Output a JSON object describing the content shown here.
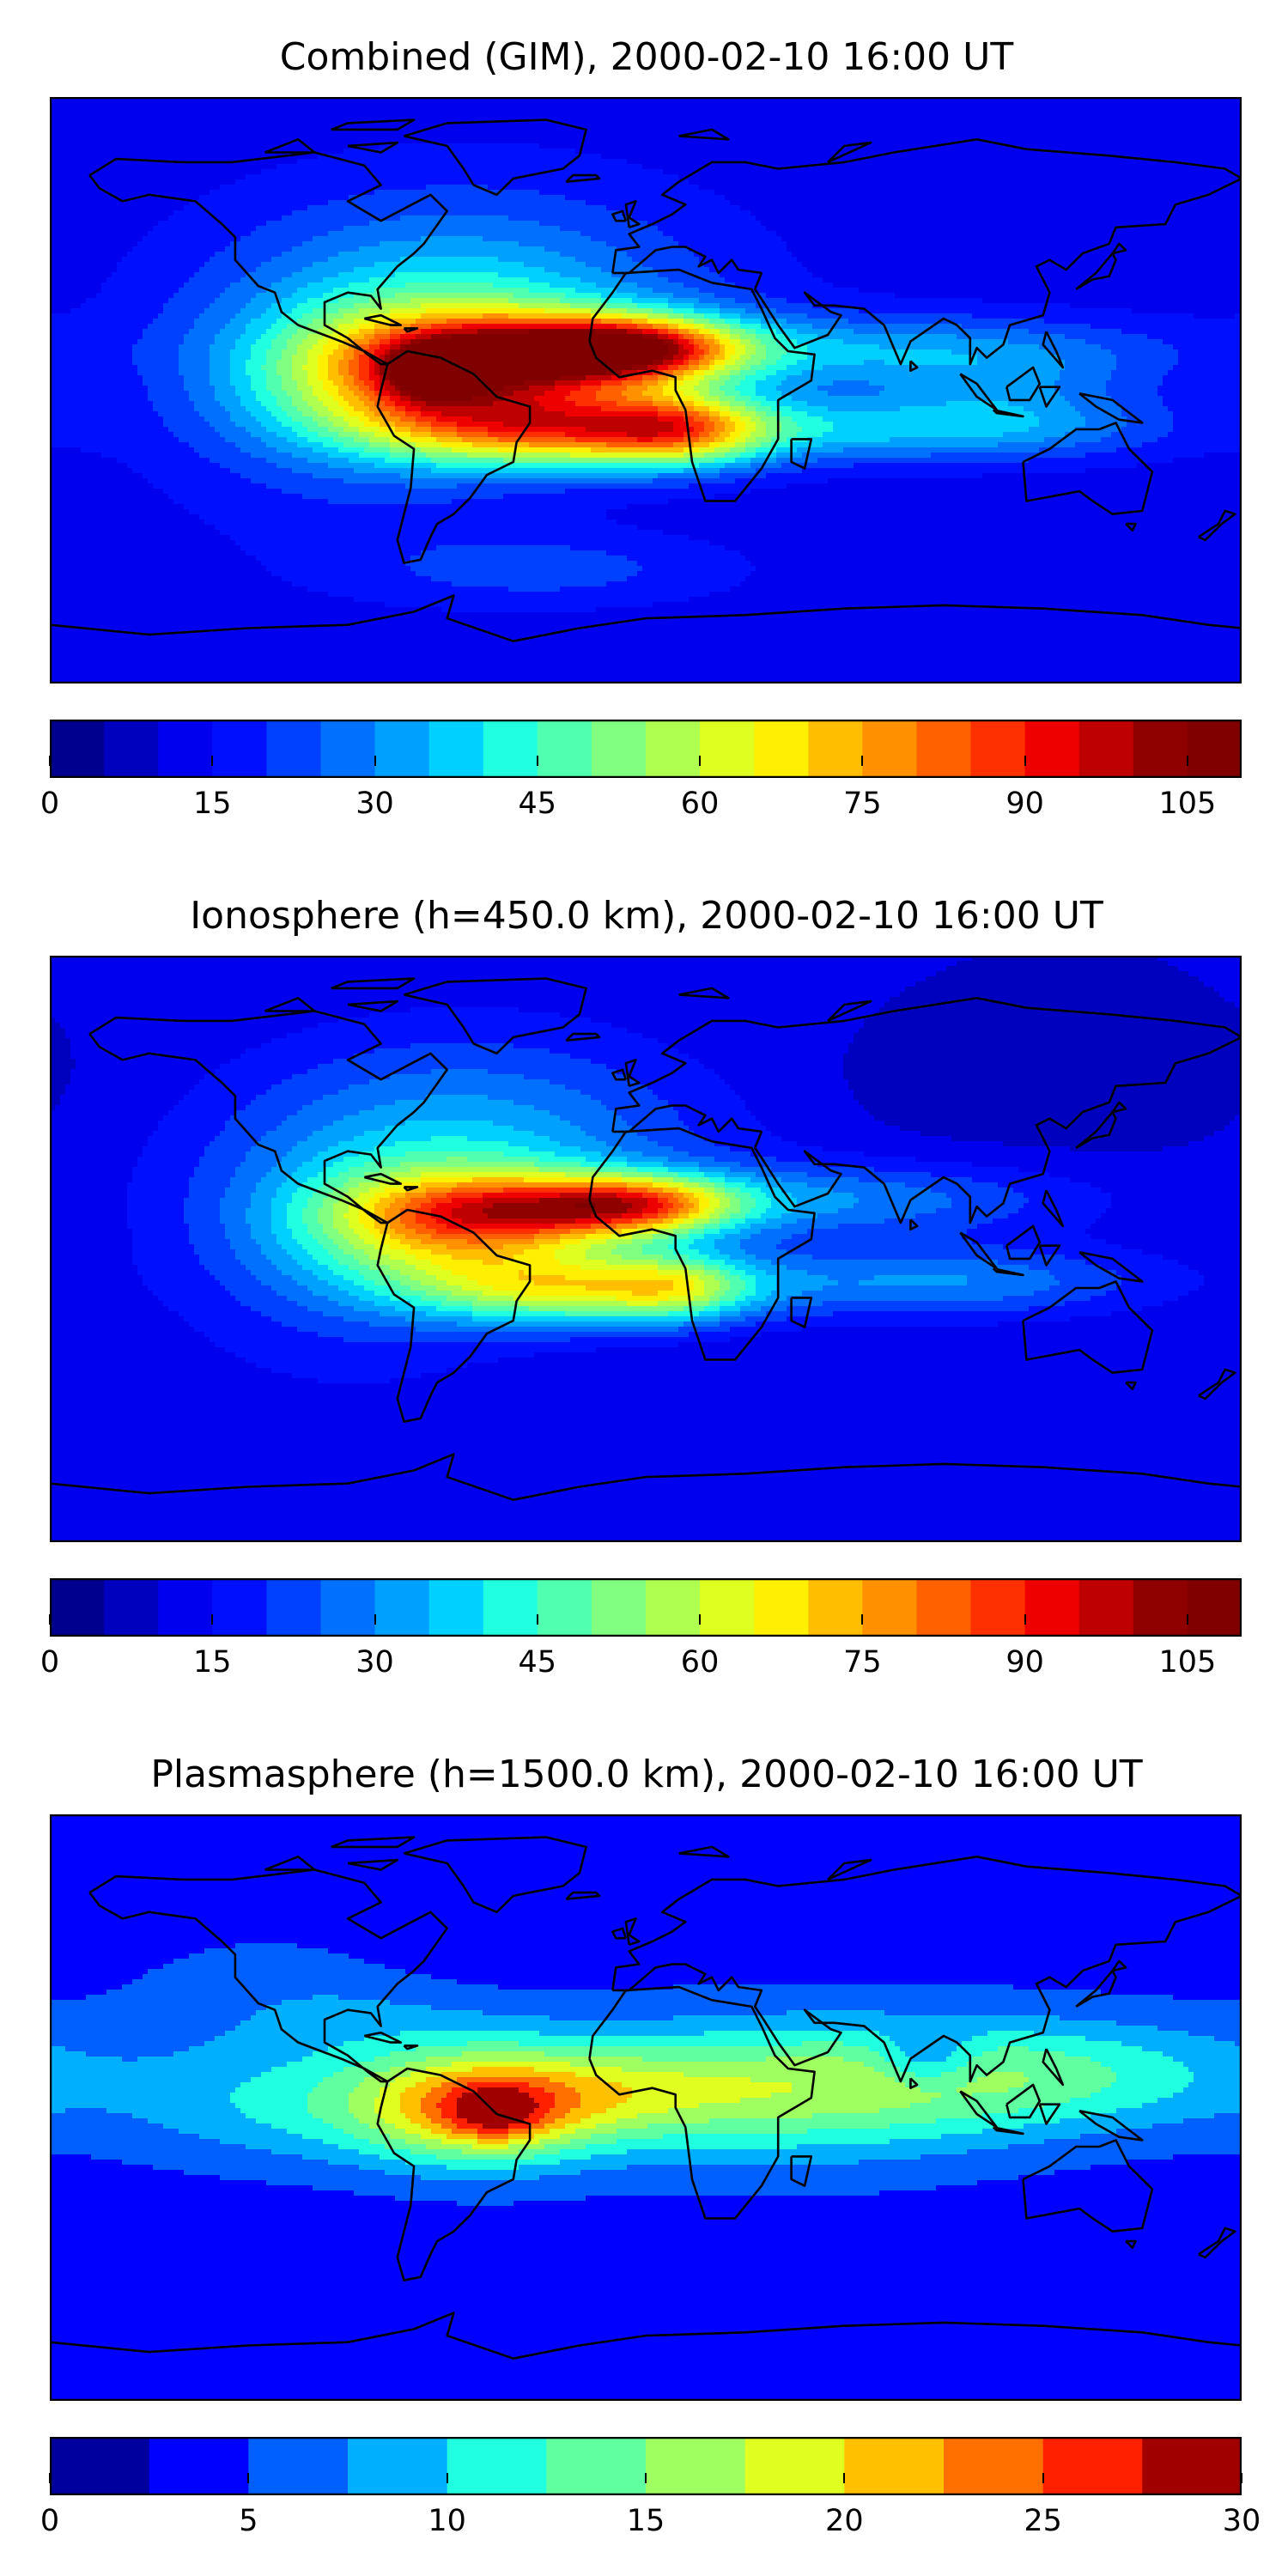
{
  "figure": {
    "background": "#ffffff"
  },
  "chart_data": [
    {
      "type": "heatmap",
      "title": "Combined (GIM), 2000-02-10 16:00 UT",
      "colorbar": {
        "min": 0,
        "max": 110,
        "step": 5,
        "ticks": [
          0,
          15,
          30,
          45,
          60,
          75,
          90,
          105
        ],
        "colors": [
          "#00008f",
          "#0000bf",
          "#0000ef",
          "#0010ff",
          "#0040ff",
          "#0070ff",
          "#00a0ff",
          "#00d0ff",
          "#20ffdf",
          "#50ffaf",
          "#80ff80",
          "#afff50",
          "#dfff20",
          "#ffef00",
          "#ffbf00",
          "#ff9000",
          "#ff6000",
          "#ff3000",
          "#ef0000",
          "#bf0000",
          "#8f0000",
          "#800000"
        ]
      },
      "background_value": 12,
      "blobs": [
        {
          "lon": -60,
          "lat": 5,
          "sx": 35,
          "sy": 14,
          "v": 55
        },
        {
          "lon": -25,
          "lat": 12,
          "sx": 30,
          "sy": 7,
          "v": 45
        },
        {
          "lon": 0,
          "lat": 13,
          "sx": 22,
          "sy": 7,
          "v": 40
        },
        {
          "lon": -20,
          "lat": -12,
          "sx": 38,
          "sy": 8,
          "v": 50
        },
        {
          "lon": 10,
          "lat": -12,
          "sx": 18,
          "sy": 8,
          "v": 30
        },
        {
          "lon": -65,
          "lat": 5,
          "sx": 10,
          "sy": 6,
          "v": 25
        },
        {
          "lon": -50,
          "lat": 25,
          "sx": 50,
          "sy": 25,
          "v": 22
        },
        {
          "lon": 70,
          "lat": 12,
          "sx": 60,
          "sy": 8,
          "v": 20
        },
        {
          "lon": 80,
          "lat": -12,
          "sx": 50,
          "sy": 7,
          "v": 20
        },
        {
          "lon": 110,
          "lat": -2,
          "sx": 30,
          "sy": 10,
          "v": 12
        },
        {
          "lon": -90,
          "lat": 0,
          "sx": 40,
          "sy": 30,
          "v": 12
        },
        {
          "lon": -30,
          "lat": -55,
          "sx": 40,
          "sy": 8,
          "v": 10
        }
      ]
    },
    {
      "type": "heatmap",
      "title": "Ionosphere  (h=450.0 km), 2000-02-10 16:00 UT",
      "colorbar": {
        "min": 0,
        "max": 110,
        "step": 5,
        "ticks": [
          0,
          15,
          30,
          45,
          60,
          75,
          90,
          105
        ],
        "colors": [
          "#00008f",
          "#0000bf",
          "#0000ef",
          "#0010ff",
          "#0040ff",
          "#0070ff",
          "#00a0ff",
          "#00d0ff",
          "#20ffdf",
          "#50ffaf",
          "#80ff80",
          "#afff50",
          "#dfff20",
          "#ffef00",
          "#ffbf00",
          "#ff9000",
          "#ff6000",
          "#ff3000",
          "#ef0000",
          "#bf0000",
          "#8f0000",
          "#800000"
        ]
      },
      "background_value": 10,
      "blobs": [
        {
          "lon": -60,
          "lat": 8,
          "sx": 30,
          "sy": 12,
          "v": 40
        },
        {
          "lon": -25,
          "lat": 12,
          "sx": 30,
          "sy": 7,
          "v": 38
        },
        {
          "lon": 0,
          "lat": 14,
          "sx": 20,
          "sy": 6,
          "v": 35
        },
        {
          "lon": -20,
          "lat": -12,
          "sx": 35,
          "sy": 8,
          "v": 45
        },
        {
          "lon": 10,
          "lat": -12,
          "sx": 15,
          "sy": 7,
          "v": 20
        },
        {
          "lon": -50,
          "lat": 30,
          "sx": 50,
          "sy": 25,
          "v": 22
        },
        {
          "lon": 60,
          "lat": 15,
          "sx": 50,
          "sy": 8,
          "v": 18
        },
        {
          "lon": 90,
          "lat": -10,
          "sx": 45,
          "sy": 8,
          "v": 20
        },
        {
          "lon": -90,
          "lat": 0,
          "sx": 40,
          "sy": 30,
          "v": 12
        },
        {
          "lon": 120,
          "lat": 50,
          "sx": 40,
          "sy": 12,
          "v": -4
        }
      ]
    },
    {
      "type": "heatmap",
      "title": "Plasmasphere (h=1500.0 km), 2000-02-10 16:00 UT",
      "colorbar": {
        "min": 0,
        "max": 30,
        "step": 2.5,
        "ticks": [
          0,
          5,
          10,
          15,
          20,
          25,
          30
        ],
        "colors": [
          "#00009f",
          "#0000ff",
          "#0060ff",
          "#00b0ff",
          "#20ffdf",
          "#60ffa0",
          "#a0ff60",
          "#e0ff20",
          "#ffc000",
          "#ff7000",
          "#ff2000",
          "#a00000"
        ]
      },
      "background_value": 4,
      "blobs": [
        {
          "lon": -50,
          "lat": 0,
          "sx": 25,
          "sy": 12,
          "v": 15
        },
        {
          "lon": -45,
          "lat": -2,
          "sx": 10,
          "sy": 6,
          "v": 6
        },
        {
          "lon": -10,
          "lat": 5,
          "sx": 30,
          "sy": 10,
          "v": 6
        },
        {
          "lon": 40,
          "lat": 5,
          "sx": 50,
          "sy": 15,
          "v": 10
        },
        {
          "lon": 120,
          "lat": 10,
          "sx": 50,
          "sy": 12,
          "v": 8
        },
        {
          "lon": 85,
          "lat": 15,
          "sx": 10,
          "sy": 6,
          "v": -6
        },
        {
          "lon": -100,
          "lat": 0,
          "sx": 40,
          "sy": 12,
          "v": 6
        },
        {
          "lon": -90,
          "lat": 30,
          "sx": 40,
          "sy": 15,
          "v": 4
        },
        {
          "lon": -60,
          "lat": 45,
          "sx": 30,
          "sy": 10,
          "v": -2
        }
      ]
    }
  ]
}
